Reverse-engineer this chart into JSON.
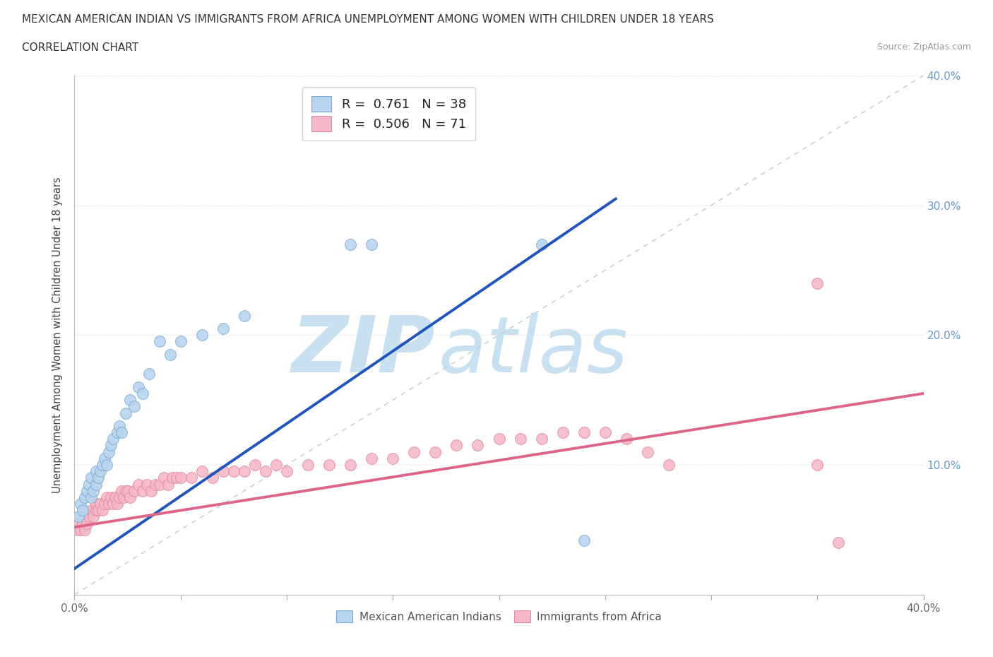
{
  "title": "MEXICAN AMERICAN INDIAN VS IMMIGRANTS FROM AFRICA UNEMPLOYMENT AMONG WOMEN WITH CHILDREN UNDER 18 YEARS",
  "subtitle": "CORRELATION CHART",
  "source": "Source: ZipAtlas.com",
  "ylabel": "Unemployment Among Women with Children Under 18 years",
  "xlim": [
    0.0,
    0.4
  ],
  "ylim": [
    0.0,
    0.4
  ],
  "blue_fill_color": "#B8D4EE",
  "blue_edge_color": "#7AAAD4",
  "pink_fill_color": "#F5B8C8",
  "pink_edge_color": "#E088A0",
  "blue_line_color": "#2255BB",
  "pink_line_color": "#DD6688",
  "diagonal_color": "#BBCCDD",
  "R_blue": 0.761,
  "N_blue": 38,
  "R_pink": 0.506,
  "N_pink": 71,
  "watermark_zip_color": "#C8E0F0",
  "watermark_atlas_color": "#C8E0F0",
  "background_color": "#FFFFFF",
  "grid_color": "#DDDDDD",
  "right_tick_color": "#6699CC",
  "blue_scatter_x": [
    0.002,
    0.003,
    0.004,
    0.005,
    0.006,
    0.007,
    0.008,
    0.008,
    0.009,
    0.01,
    0.01,
    0.011,
    0.012,
    0.013,
    0.014,
    0.015,
    0.016,
    0.017,
    0.018,
    0.02,
    0.021,
    0.022,
    0.024,
    0.026,
    0.028,
    0.03,
    0.032,
    0.035,
    0.04,
    0.045,
    0.05,
    0.06,
    0.07,
    0.08,
    0.13,
    0.14,
    0.22,
    0.24
  ],
  "blue_scatter_y": [
    0.06,
    0.07,
    0.065,
    0.075,
    0.08,
    0.085,
    0.075,
    0.09,
    0.08,
    0.085,
    0.095,
    0.09,
    0.095,
    0.1,
    0.105,
    0.1,
    0.11,
    0.115,
    0.12,
    0.125,
    0.13,
    0.125,
    0.14,
    0.15,
    0.145,
    0.16,
    0.155,
    0.17,
    0.195,
    0.185,
    0.195,
    0.2,
    0.205,
    0.215,
    0.27,
    0.27,
    0.27,
    0.042
  ],
  "pink_scatter_x": [
    0.001,
    0.002,
    0.003,
    0.004,
    0.005,
    0.005,
    0.006,
    0.007,
    0.008,
    0.009,
    0.01,
    0.01,
    0.011,
    0.012,
    0.013,
    0.014,
    0.015,
    0.016,
    0.017,
    0.018,
    0.019,
    0.02,
    0.021,
    0.022,
    0.023,
    0.024,
    0.025,
    0.026,
    0.028,
    0.03,
    0.032,
    0.034,
    0.036,
    0.038,
    0.04,
    0.042,
    0.044,
    0.046,
    0.048,
    0.05,
    0.055,
    0.06,
    0.065,
    0.07,
    0.075,
    0.08,
    0.085,
    0.09,
    0.095,
    0.1,
    0.11,
    0.12,
    0.13,
    0.14,
    0.15,
    0.16,
    0.17,
    0.18,
    0.19,
    0.2,
    0.21,
    0.22,
    0.23,
    0.24,
    0.25,
    0.26,
    0.27,
    0.28,
    0.35,
    0.35,
    0.36
  ],
  "pink_scatter_y": [
    0.05,
    0.055,
    0.05,
    0.055,
    0.05,
    0.06,
    0.055,
    0.06,
    0.065,
    0.06,
    0.065,
    0.07,
    0.065,
    0.07,
    0.065,
    0.07,
    0.075,
    0.07,
    0.075,
    0.07,
    0.075,
    0.07,
    0.075,
    0.08,
    0.075,
    0.08,
    0.08,
    0.075,
    0.08,
    0.085,
    0.08,
    0.085,
    0.08,
    0.085,
    0.085,
    0.09,
    0.085,
    0.09,
    0.09,
    0.09,
    0.09,
    0.095,
    0.09,
    0.095,
    0.095,
    0.095,
    0.1,
    0.095,
    0.1,
    0.095,
    0.1,
    0.1,
    0.1,
    0.105,
    0.105,
    0.11,
    0.11,
    0.115,
    0.115,
    0.12,
    0.12,
    0.12,
    0.125,
    0.125,
    0.125,
    0.12,
    0.11,
    0.1,
    0.24,
    0.1,
    0.04
  ],
  "blue_line_x0": 0.0,
  "blue_line_y0": 0.02,
  "blue_line_x1": 0.255,
  "blue_line_y1": 0.305,
  "pink_line_x0": 0.0,
  "pink_line_y0": 0.052,
  "pink_line_x1": 0.4,
  "pink_line_y1": 0.155
}
